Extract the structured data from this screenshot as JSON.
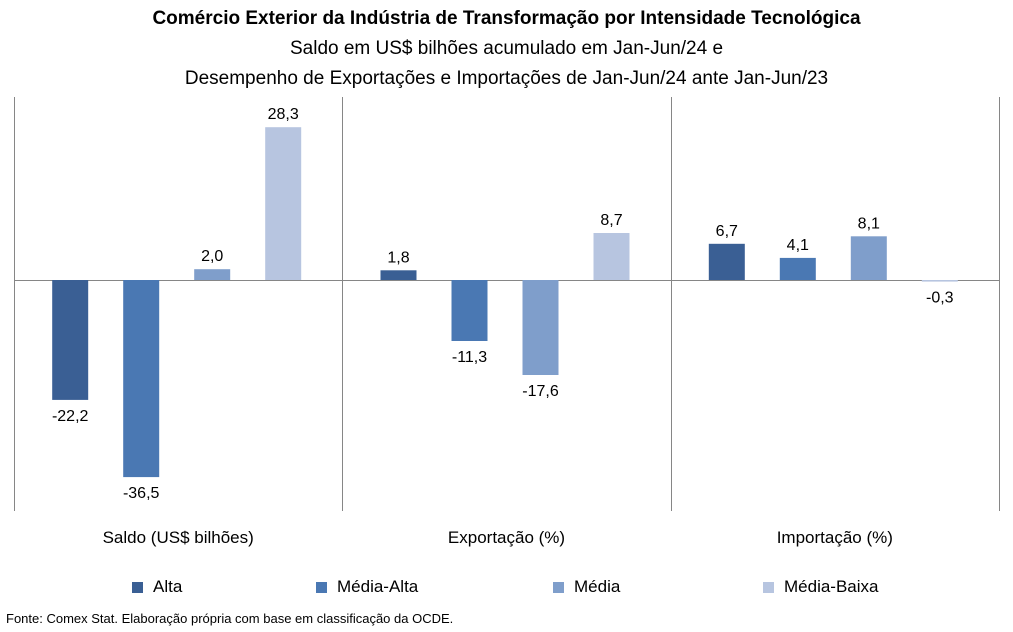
{
  "title": {
    "line1": "Comércio Exterior da Indústria de Transformação por Intensidade Tecnológica",
    "line2": "Saldo em US$ bilhões acumulado em Jan-Jun/24 e",
    "line3": "Desempenho de Exportações e Importações de Jan-Jun/24 ante Jan-Jun/23"
  },
  "chart_data": {
    "type": "bar",
    "categories": [
      "Saldo (US$ bilhões)",
      "Exportação (%)",
      "Importação (%)"
    ],
    "series": [
      {
        "name": "Alta",
        "color": "#3A5F94",
        "values": [
          -22.2,
          1.8,
          6.7
        ],
        "labels": [
          "-22,2",
          "1,8",
          "6,7"
        ]
      },
      {
        "name": "Média-Alta",
        "color": "#4A78B3",
        "values": [
          -36.5,
          -11.3,
          4.1
        ],
        "labels": [
          "-36,5",
          "-11,3",
          "4,1"
        ]
      },
      {
        "name": "Média",
        "color": "#7F9ECB",
        "values": [
          2.0,
          -17.6,
          8.1
        ],
        "labels": [
          "2,0",
          "-17,6",
          "8,1"
        ]
      },
      {
        "name": "Média-Baixa",
        "color": "#B7C5E0",
        "values": [
          28.3,
          8.7,
          -0.3
        ],
        "labels": [
          "28,3",
          "8,7",
          "-0,3"
        ]
      }
    ],
    "ylim": [
      -42,
      34
    ],
    "grid": false,
    "legend_position": "bottom"
  },
  "source": "Fonte: Comex Stat. Elaboração própria com base em classificação da OCDE."
}
